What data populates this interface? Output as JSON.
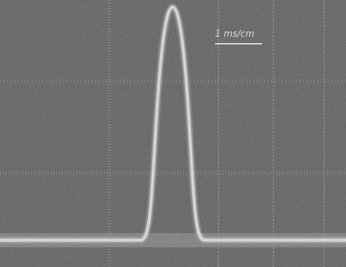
{
  "annotation": "1 ms/cm"
}
